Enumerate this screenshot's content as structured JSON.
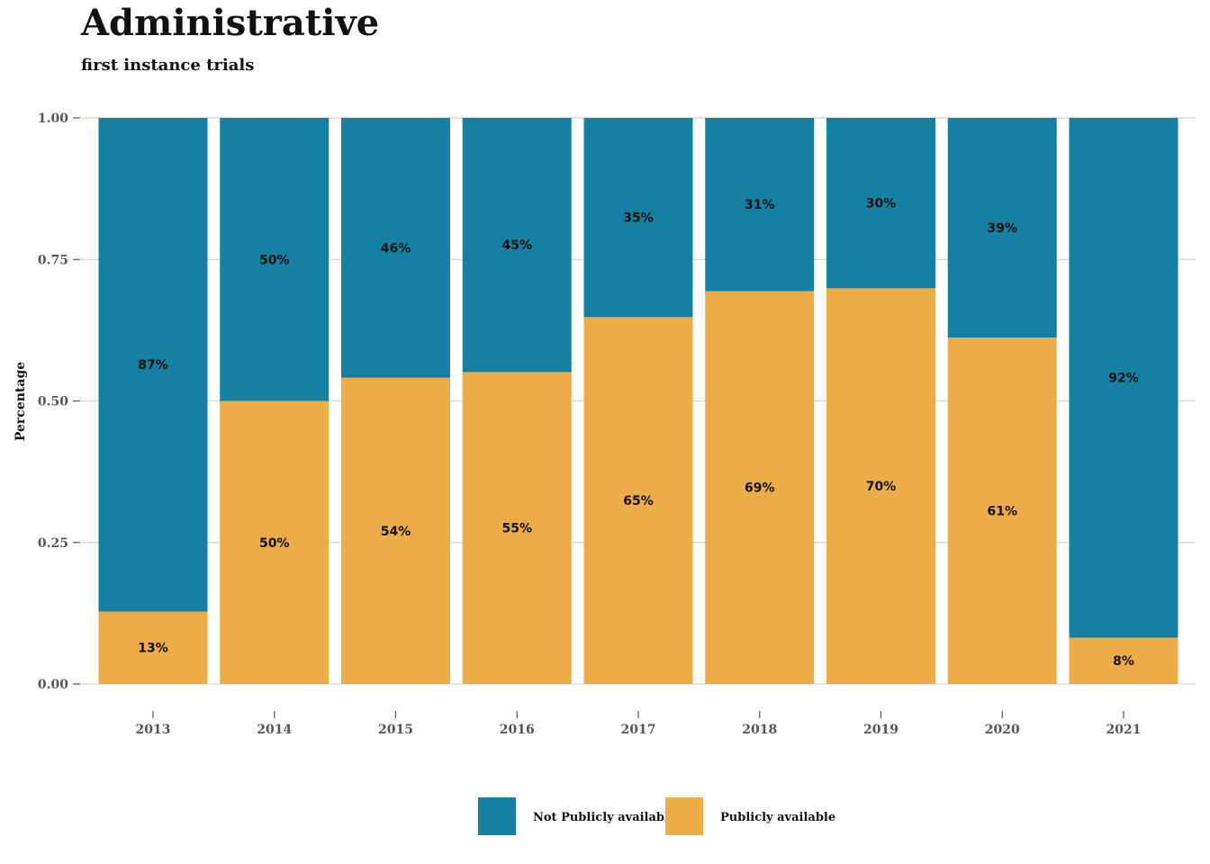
{
  "chart_data": {
    "type": "bar",
    "stacked": true,
    "title": "Administrative",
    "subtitle": "first instance trials",
    "xlabel": "",
    "ylabel": "Percentage",
    "ylim": [
      0,
      1
    ],
    "yticks": [
      "0.00",
      "0.25",
      "0.50",
      "0.75",
      "1.00"
    ],
    "categories": [
      "2013",
      "2014",
      "2015",
      "2016",
      "2017",
      "2018",
      "2019",
      "2020",
      "2021"
    ],
    "series": [
      {
        "name": "Publicly available",
        "color": "#ecac48",
        "values": [
          0.128,
          0.5,
          0.541,
          0.551,
          0.648,
          0.694,
          0.699,
          0.612,
          0.082
        ],
        "labels": [
          "13%",
          "50%",
          "54%",
          "55%",
          "65%",
          "69%",
          "70%",
          "61%",
          "8%"
        ]
      },
      {
        "name": "Not Publicly available",
        "color": "#1680a2",
        "values": [
          0.872,
          0.5,
          0.459,
          0.449,
          0.352,
          0.306,
          0.301,
          0.388,
          0.918
        ],
        "labels": [
          "87%",
          "50%",
          "46%",
          "45%",
          "35%",
          "31%",
          "30%",
          "39%",
          "92%"
        ]
      }
    ],
    "legend": {
      "position": "bottom",
      "entries": [
        "Not Publicly available",
        "Publicly available"
      ]
    },
    "grid": true
  }
}
